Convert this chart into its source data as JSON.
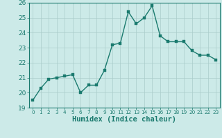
{
  "x": [
    0,
    1,
    2,
    3,
    4,
    5,
    6,
    7,
    8,
    9,
    10,
    11,
    12,
    13,
    14,
    15,
    16,
    17,
    18,
    19,
    20,
    21,
    22,
    23
  ],
  "y": [
    19.5,
    20.3,
    20.9,
    21.0,
    21.1,
    21.2,
    20.0,
    20.5,
    20.5,
    21.5,
    23.2,
    23.3,
    25.4,
    24.6,
    25.0,
    25.8,
    23.8,
    23.4,
    23.4,
    23.4,
    22.8,
    22.5,
    22.5,
    22.2
  ],
  "xlabel": "Humidex (Indice chaleur)",
  "ylim": [
    19,
    26
  ],
  "xlim": [
    -0.5,
    23.5
  ],
  "yticks": [
    19,
    20,
    21,
    22,
    23,
    24,
    25,
    26
  ],
  "xticks": [
    0,
    1,
    2,
    3,
    4,
    5,
    6,
    7,
    8,
    9,
    10,
    11,
    12,
    13,
    14,
    15,
    16,
    17,
    18,
    19,
    20,
    21,
    22,
    23
  ],
  "line_color": "#1a7a6e",
  "marker_color": "#1a7a6e",
  "bg_color": "#cceae8",
  "grid_color": "#aaccca",
  "axis_color": "#1a7a6e",
  "tick_label_color": "#1a7a6e",
  "xlabel_fontsize": 7.5,
  "tick_fontsize": 6.5,
  "marker_size": 2.5,
  "line_width": 1.0
}
